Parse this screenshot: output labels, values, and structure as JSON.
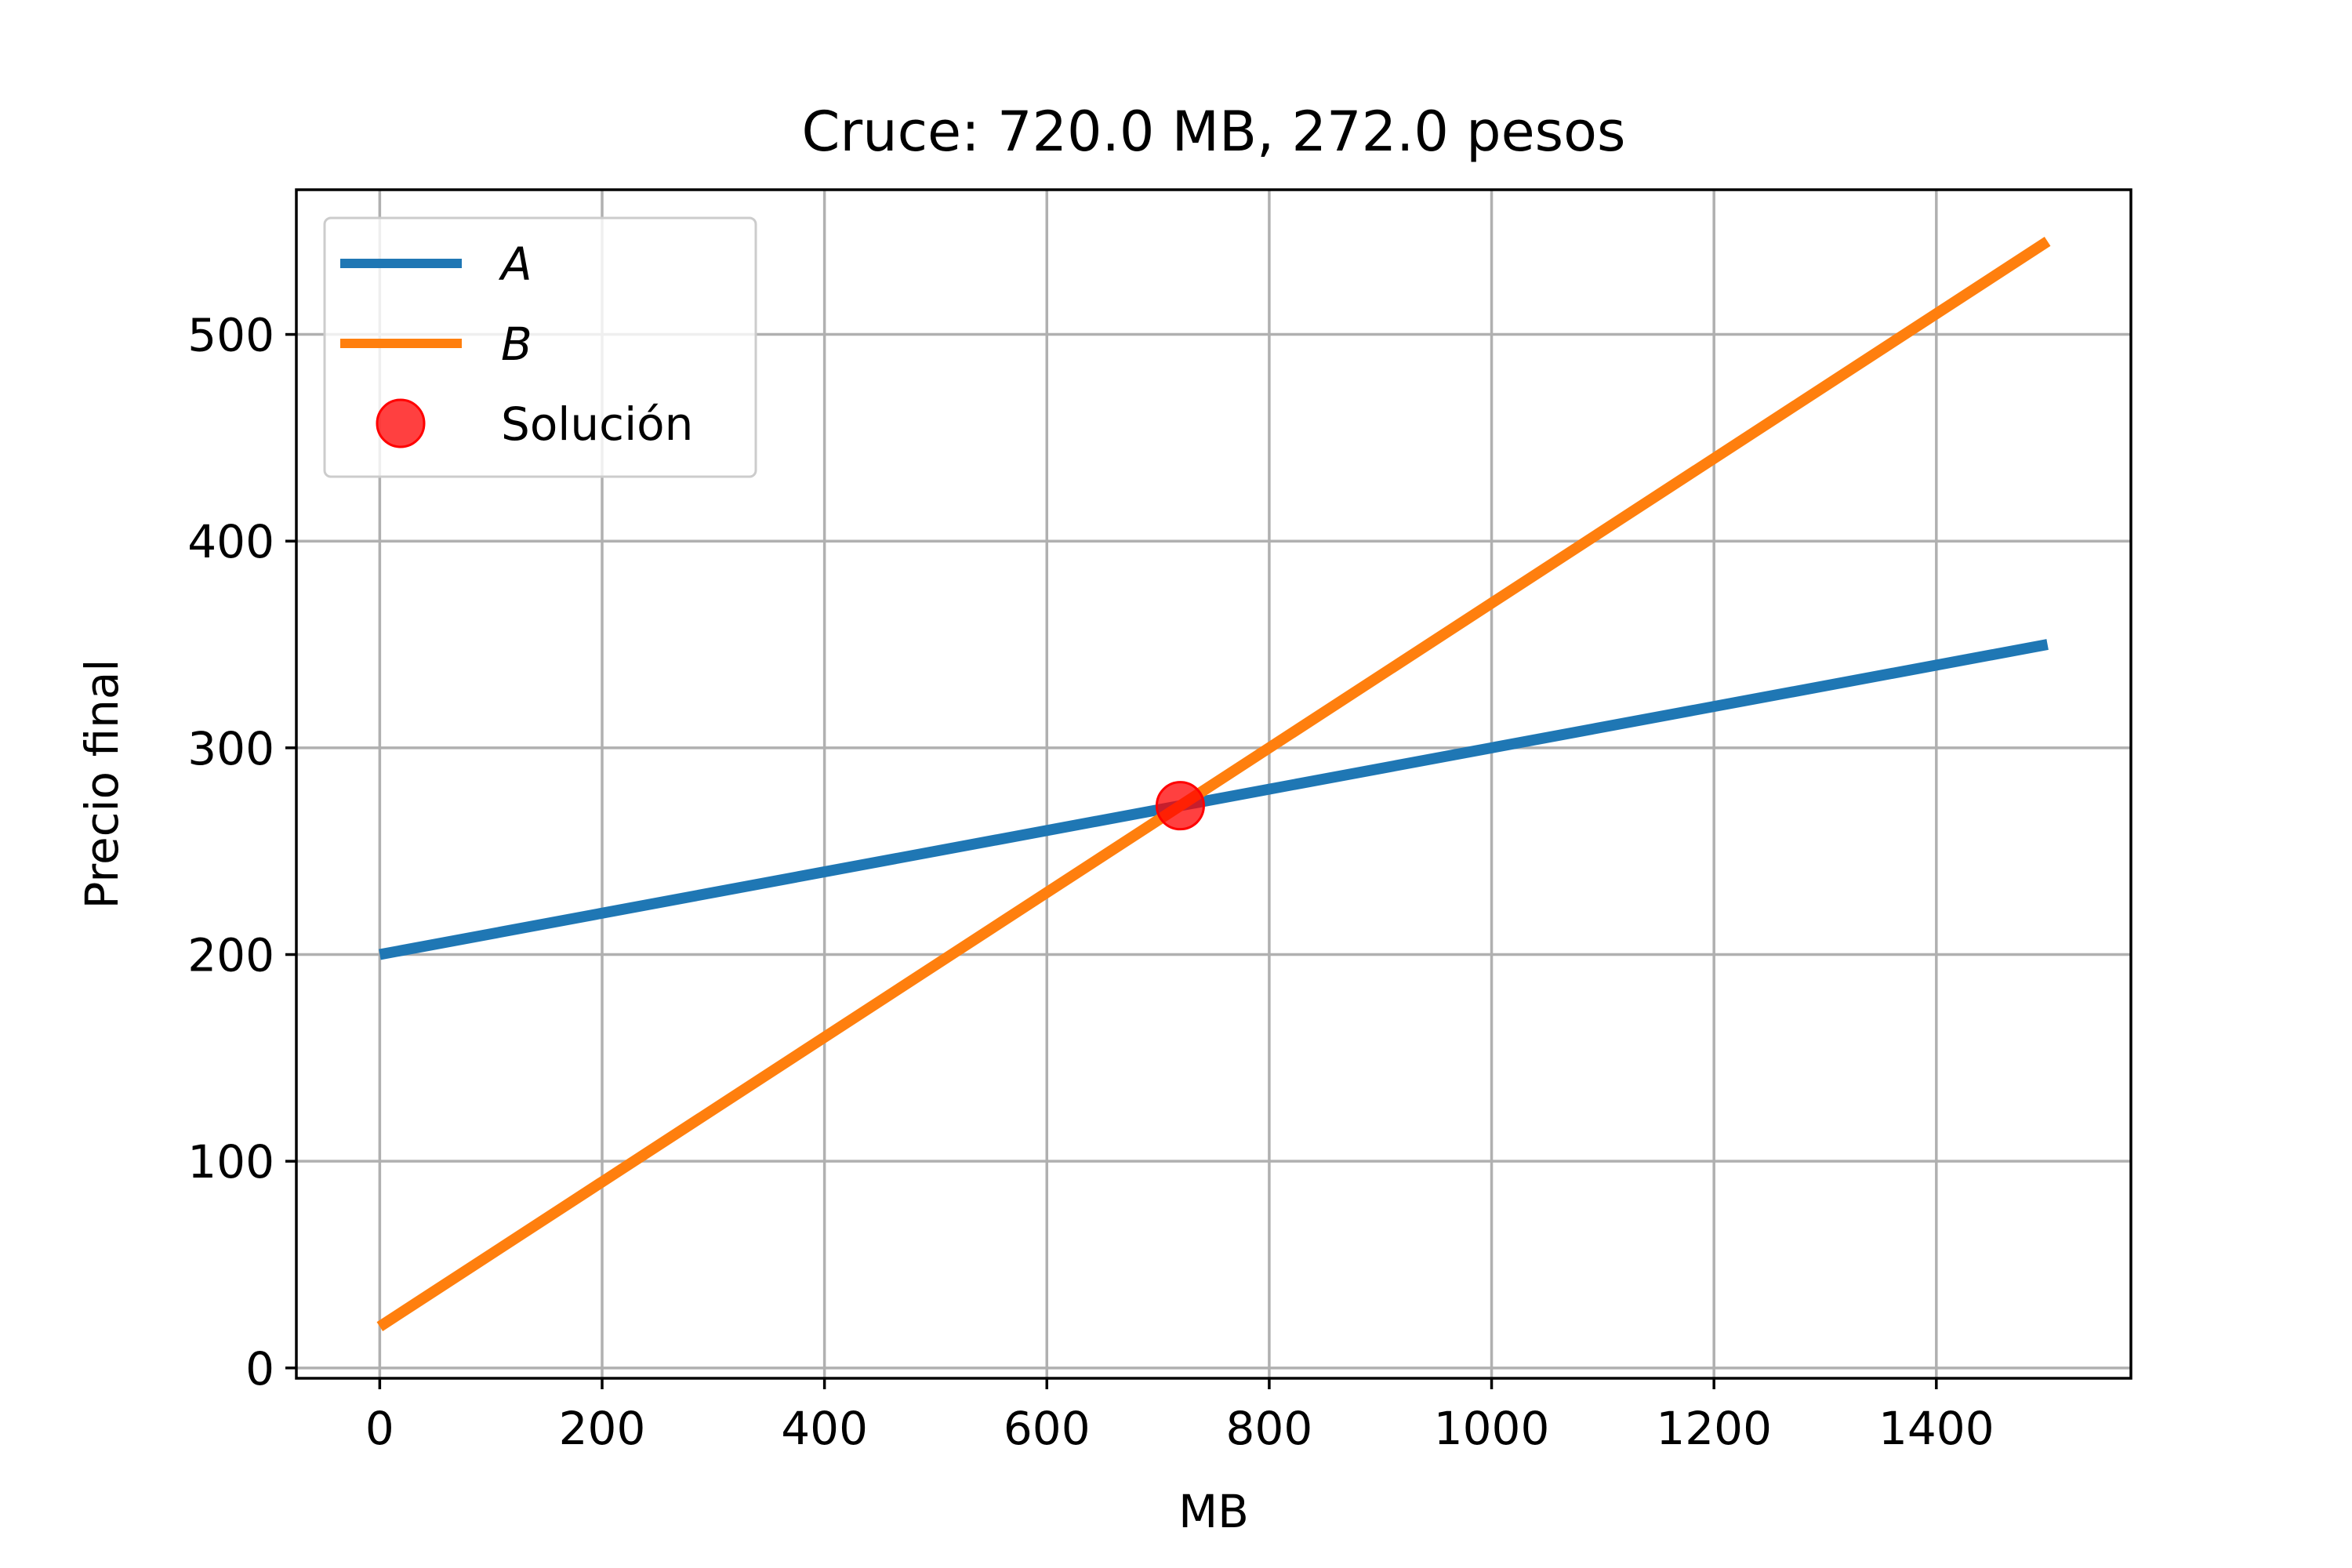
{
  "chart_data": {
    "type": "line",
    "title": "Cruce: 720.0 MB, 272.0 pesos",
    "xlabel": "MB",
    "ylabel": "Precio final",
    "xlim": [
      -75,
      1575
    ],
    "ylim": [
      -5,
      570
    ],
    "xticks": [
      0,
      200,
      400,
      600,
      800,
      1000,
      1200,
      1400
    ],
    "yticks": [
      0,
      100,
      200,
      300,
      400,
      500
    ],
    "xtick_labels": [
      "0",
      "200",
      "400",
      "600",
      "800",
      "1000",
      "1200",
      "1400"
    ],
    "ytick_labels": [
      "0",
      "100",
      "200",
      "300",
      "400",
      "500"
    ],
    "grid": true,
    "legend_position": "upper-left",
    "series": [
      {
        "name": "A",
        "color": "#1f77b4",
        "x": [
          0,
          1500
        ],
        "y": [
          200,
          350
        ]
      },
      {
        "name": "B",
        "color": "#ff7f0e",
        "x": [
          0,
          1500
        ],
        "y": [
          20,
          545
        ]
      }
    ],
    "points": [
      {
        "name": "Solución",
        "color": "#ff0000",
        "x": 720,
        "y": 272
      }
    ]
  }
}
